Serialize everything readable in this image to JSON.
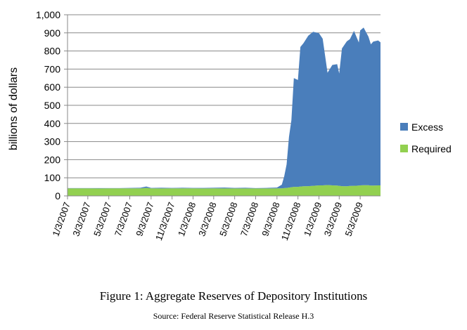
{
  "caption": "Figure 1: Aggregate Reserves of Depository Institutions",
  "source": "Source: Federal Reserve Statistical Release H.3",
  "chart_data": {
    "type": "area",
    "stacked": true,
    "ylabel": "billions of dollars",
    "ylim": [
      0,
      1000
    ],
    "yticks": [
      "0",
      "100",
      "200",
      "300",
      "400",
      "500",
      "600",
      "700",
      "800",
      "900",
      "1,000"
    ],
    "ytick_values": [
      0,
      100,
      200,
      300,
      400,
      500,
      600,
      700,
      800,
      900,
      1000
    ],
    "grid": "horizontal",
    "legend": "right",
    "xticks": [
      "1/3/2007",
      "3/3/2007",
      "5/3/2007",
      "7/3/2007",
      "9/3/2007",
      "11/3/2007",
      "1/3/2008",
      "3/3/2008",
      "5/3/2008",
      "7/3/2008",
      "9/3/2008",
      "11/3/2008",
      "1/3/2009",
      "3/3/2009",
      "5/3/2009"
    ],
    "x": [
      "2007-01-03",
      "2007-02-03",
      "2007-03-03",
      "2007-04-03",
      "2007-05-03",
      "2007-06-03",
      "2007-07-03",
      "2007-08-03",
      "2007-08-20",
      "2007-09-03",
      "2007-10-03",
      "2007-11-03",
      "2007-12-03",
      "2008-01-03",
      "2008-02-03",
      "2008-03-03",
      "2008-04-03",
      "2008-05-03",
      "2008-06-03",
      "2008-07-03",
      "2008-08-03",
      "2008-09-03",
      "2008-09-17",
      "2008-09-24",
      "2008-10-01",
      "2008-10-08",
      "2008-10-15",
      "2008-10-22",
      "2008-11-03",
      "2008-11-10",
      "2008-11-19",
      "2008-12-03",
      "2008-12-17",
      "2009-01-03",
      "2009-01-14",
      "2009-01-28",
      "2009-02-11",
      "2009-02-25",
      "2009-03-03",
      "2009-03-11",
      "2009-03-25",
      "2009-04-03",
      "2009-04-15",
      "2009-04-29",
      "2009-05-03",
      "2009-05-13",
      "2009-05-27",
      "2009-06-03",
      "2009-06-10",
      "2009-06-24",
      "2009-07-01"
    ],
    "series": [
      {
        "name": "Required",
        "color": "#92D050",
        "values": [
          42,
          42,
          42,
          41,
          42,
          42,
          42,
          42,
          44,
          42,
          41,
          42,
          42,
          42,
          41,
          42,
          41,
          41,
          41,
          41,
          41,
          42,
          42,
          43,
          44,
          46,
          48,
          50,
          50,
          52,
          53,
          54,
          56,
          58,
          58,
          60,
          58,
          57,
          56,
          54,
          53,
          55,
          56,
          57,
          58,
          59,
          59,
          57,
          57,
          58,
          58
        ]
      },
      {
        "name": "Excess",
        "color": "#4A7EBB",
        "values": [
          1,
          1,
          1,
          2,
          1,
          1,
          2,
          3,
          8,
          2,
          4,
          2,
          3,
          2,
          3,
          3,
          5,
          3,
          4,
          2,
          3,
          4,
          20,
          65,
          130,
          280,
          370,
          600,
          590,
          770,
          790,
          830,
          850,
          840,
          810,
          620,
          665,
          670,
          620,
          760,
          800,
          810,
          855,
          790,
          855,
          870,
          820,
          780,
          795,
          800,
          790
        ]
      }
    ]
  }
}
